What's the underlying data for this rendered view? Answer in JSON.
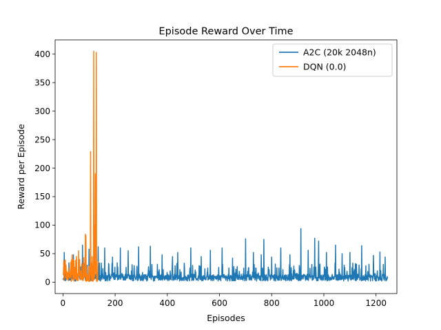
{
  "chart_data": {
    "type": "line",
    "title": "Episode Reward Over Time",
    "xlabel": "Episodes",
    "ylabel": "Reward per Episode",
    "xlim": [
      -30,
      1280
    ],
    "ylim": [
      -20,
      425
    ],
    "xticks": [
      0,
      200,
      400,
      600,
      800,
      1000,
      1200
    ],
    "yticks": [
      0,
      50,
      100,
      150,
      200,
      250,
      300,
      350,
      400
    ],
    "grid": false,
    "legend_position": "top-right",
    "series": [
      {
        "name": "A2C (20k 2048n)",
        "color": "#1f77b4",
        "episodes": 1245,
        "spikes": [
          [
            5,
            52
          ],
          [
            40,
            48
          ],
          [
            75,
            65
          ],
          [
            100,
            58
          ],
          [
            135,
            62
          ],
          [
            160,
            60
          ],
          [
            190,
            44
          ],
          [
            220,
            60
          ],
          [
            250,
            55
          ],
          [
            290,
            62
          ],
          [
            335,
            63
          ],
          [
            380,
            48
          ],
          [
            420,
            45
          ],
          [
            440,
            52
          ],
          [
            490,
            60
          ],
          [
            530,
            45
          ],
          [
            565,
            56
          ],
          [
            610,
            60
          ],
          [
            650,
            42
          ],
          [
            700,
            76
          ],
          [
            730,
            52
          ],
          [
            760,
            48
          ],
          [
            770,
            75
          ],
          [
            800,
            44
          ],
          [
            835,
            60
          ],
          [
            870,
            48
          ],
          [
            912,
            94
          ],
          [
            940,
            56
          ],
          [
            965,
            77
          ],
          [
            980,
            72
          ],
          [
            1010,
            52
          ],
          [
            1045,
            65
          ],
          [
            1070,
            50
          ],
          [
            1100,
            52
          ],
          [
            1145,
            64
          ],
          [
            1190,
            47
          ],
          [
            1215,
            53
          ],
          [
            1235,
            44
          ],
          [
            1248,
            100
          ]
        ]
      },
      {
        "name": "DQN (0.0)",
        "color": "#ff7f0e",
        "episodes": 135,
        "spikes": [
          [
            3,
            38
          ],
          [
            12,
            30
          ],
          [
            22,
            25
          ],
          [
            30,
            35
          ],
          [
            35,
            48
          ],
          [
            42,
            38
          ],
          [
            52,
            45
          ],
          [
            60,
            55
          ],
          [
            72,
            32
          ],
          [
            80,
            43
          ],
          [
            86,
            84
          ],
          [
            88,
            82
          ],
          [
            100,
            28
          ],
          [
            106,
            229
          ],
          [
            112,
            45
          ],
          [
            118,
            405
          ],
          [
            121,
            100
          ],
          [
            124,
            190
          ],
          [
            126,
            130
          ],
          [
            128,
            403
          ]
        ]
      }
    ]
  }
}
